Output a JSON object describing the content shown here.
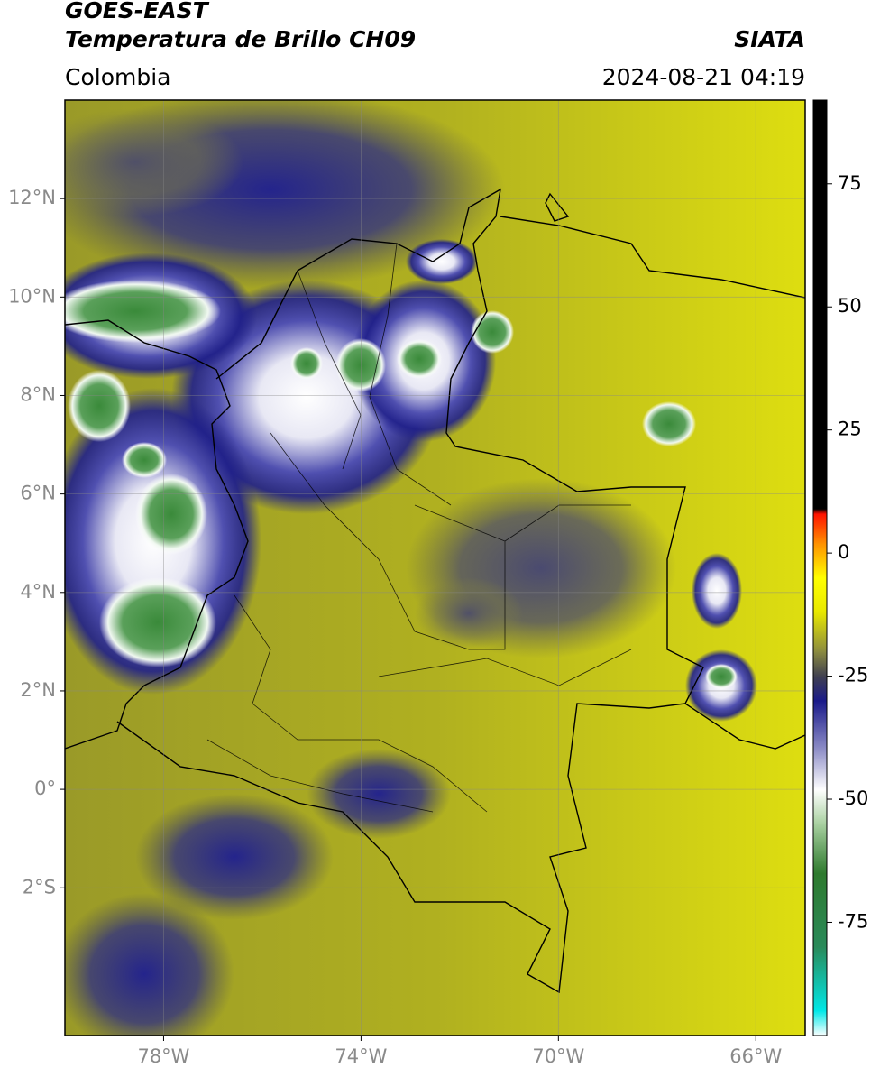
{
  "chart_data": {
    "type": "map",
    "title": "GOES-EAST",
    "subtitle": "Temperatura de Brillo CH09",
    "source": "SIATA",
    "region": "Colombia",
    "datetime": "2024-08-21 04:19",
    "xlim": [
      -80,
      -65
    ],
    "ylim": [
      -5,
      14
    ],
    "xticks": [
      {
        "value": -78,
        "label": "78°W"
      },
      {
        "value": -74,
        "label": "74°W"
      },
      {
        "value": -70,
        "label": "70°W"
      },
      {
        "value": -66,
        "label": "66°W"
      }
    ],
    "yticks": [
      {
        "value": 12,
        "label": "12°N"
      },
      {
        "value": 10,
        "label": "10°N"
      },
      {
        "value": 8,
        "label": "8°N"
      },
      {
        "value": 6,
        "label": "6°N"
      },
      {
        "value": 4,
        "label": "4°N"
      },
      {
        "value": 2,
        "label": "2°N"
      },
      {
        "value": 0,
        "label": "0°"
      },
      {
        "value": -2,
        "label": "2°S"
      }
    ],
    "grid": true,
    "colorbar": {
      "lim": [
        -98,
        92
      ],
      "ticks": [
        75,
        50,
        25,
        0,
        -25,
        -50,
        -75
      ],
      "colors": [
        {
          "value": -98,
          "color": "#ffffff"
        },
        {
          "value": -93,
          "color": "#00e8e8"
        },
        {
          "value": -80,
          "color": "#2a8a5a"
        },
        {
          "value": -65,
          "color": "#2e7a2e"
        },
        {
          "value": -55,
          "color": "#a8d0a0"
        },
        {
          "value": -48,
          "color": "#ffffff"
        },
        {
          "value": -40,
          "color": "#9090c8"
        },
        {
          "value": -30,
          "color": "#1a1a8a"
        },
        {
          "value": -25,
          "color": "#404050"
        },
        {
          "value": -20,
          "color": "#8a8a40"
        },
        {
          "value": -12,
          "color": "#e8e800"
        },
        {
          "value": -5,
          "color": "#ffff00"
        },
        {
          "value": 2,
          "color": "#ff9000"
        },
        {
          "value": 8,
          "color": "#ff1000"
        },
        {
          "value": 9,
          "color": "#000000"
        },
        {
          "value": 92,
          "color": "#000000"
        }
      ]
    }
  }
}
